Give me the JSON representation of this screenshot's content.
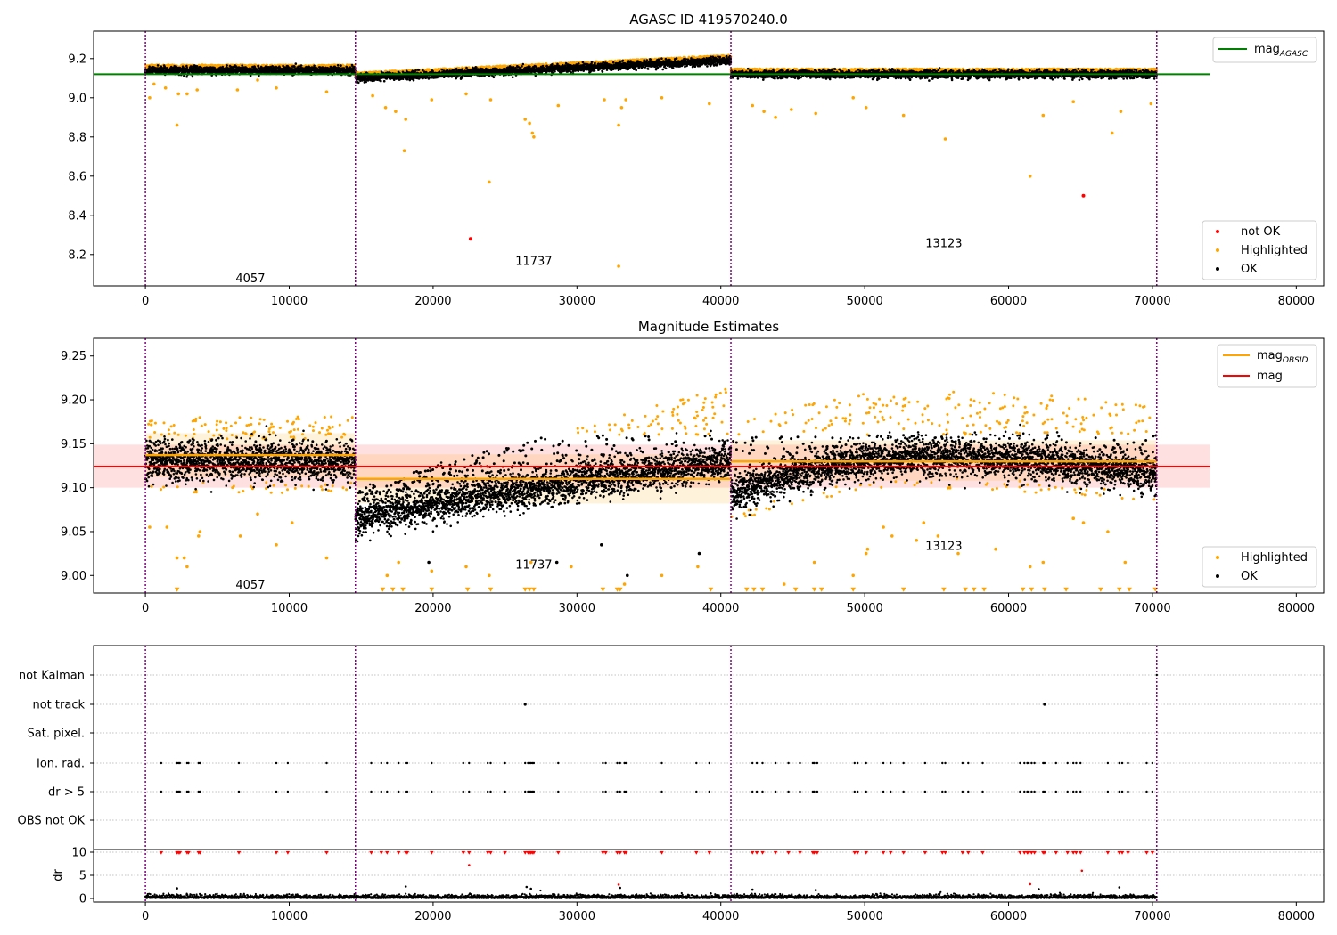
{
  "chart_data": [
    {
      "id": "agasc",
      "type": "scatter",
      "title": "AGASC ID 419570240.0",
      "xlim": [
        -3600,
        81900
      ],
      "ylim": [
        8.04,
        9.34
      ],
      "x_ticks": [
        0,
        10000,
        20000,
        30000,
        40000,
        50000,
        60000,
        70000,
        80000
      ],
      "y_ticks": [
        8.2,
        8.4,
        8.6,
        8.8,
        9.0,
        9.2
      ],
      "tick_decimals": 1,
      "obsid_boundaries": [
        0,
        14600,
        40700,
        70300
      ],
      "obsid_labels": [
        {
          "text": "4057",
          "x": 7300,
          "y": 8.08
        },
        {
          "text": "11737",
          "x": 27000,
          "y": 8.17
        },
        {
          "text": "13123",
          "x": 55500,
          "y": 8.26
        }
      ],
      "reference_line": {
        "label": "mag",
        "label_sub": "AGASC",
        "value": 9.12,
        "x": [
          -3600,
          74000
        ],
        "color": "#008000"
      },
      "segments": [
        {
          "x": [
            0,
            14600
          ],
          "mean": 9.14,
          "spread": 0.012,
          "trend": 0.0
        },
        {
          "x": [
            14600,
            40700
          ],
          "mean": 9.1,
          "spread": 0.012,
          "trend": 0.09
        },
        {
          "x": [
            40700,
            70300
          ],
          "mean": 9.12,
          "spread": 0.012,
          "trend": 0.0
        }
      ],
      "highlighted_outliers": [
        [
          300,
          9.0
        ],
        [
          600,
          9.07
        ],
        [
          1400,
          9.05
        ],
        [
          2200,
          8.86
        ],
        [
          2300,
          9.02
        ],
        [
          2900,
          9.02
        ],
        [
          3600,
          9.04
        ],
        [
          6400,
          9.04
        ],
        [
          7800,
          9.09
        ],
        [
          9100,
          9.05
        ],
        [
          12600,
          9.03
        ],
        [
          15800,
          9.01
        ],
        [
          16700,
          8.95
        ],
        [
          17400,
          8.93
        ],
        [
          18100,
          8.89
        ],
        [
          18000,
          8.73
        ],
        [
          19900,
          8.99
        ],
        [
          22300,
          9.02
        ],
        [
          23900,
          8.57
        ],
        [
          24000,
          8.99
        ],
        [
          26400,
          8.89
        ],
        [
          26700,
          8.87
        ],
        [
          26900,
          8.82
        ],
        [
          27000,
          8.8
        ],
        [
          28700,
          8.96
        ],
        [
          31900,
          8.99
        ],
        [
          32900,
          8.86
        ],
        [
          33100,
          8.95
        ],
        [
          33400,
          8.99
        ],
        [
          35900,
          9.0
        ],
        [
          39200,
          8.97
        ],
        [
          42200,
          8.96
        ],
        [
          43000,
          8.93
        ],
        [
          43800,
          8.9
        ],
        [
          44900,
          8.94
        ],
        [
          46600,
          8.92
        ],
        [
          49200,
          9.0
        ],
        [
          50100,
          8.95
        ],
        [
          52700,
          8.91
        ],
        [
          55600,
          8.79
        ],
        [
          61500,
          8.6
        ],
        [
          62400,
          8.91
        ],
        [
          64500,
          8.98
        ],
        [
          67200,
          8.82
        ],
        [
          67800,
          8.93
        ],
        [
          69900,
          8.97
        ]
      ],
      "highlighted_upper_band": {
        "min": 0.012,
        "max": 0.06,
        "density": 0.6
      },
      "not_ok_points": [
        [
          22600,
          8.28
        ],
        [
          65200,
          8.5
        ]
      ],
      "special_points": [
        [
          32900,
          8.14
        ]
      ],
      "legends": [
        {
          "position": "upper-right",
          "entries": [
            {
              "label": "mag",
              "sub": "AGASC",
              "marker": "line",
              "color": "#008000"
            }
          ]
        },
        {
          "position": "lower-right",
          "entries": [
            {
              "label": "not OK",
              "marker": "dot",
              "color": "#ff0000"
            },
            {
              "label": "Highlighted",
              "marker": "dot",
              "color": "#ffa500"
            },
            {
              "label": "OK",
              "marker": "dot",
              "color": "#000000"
            }
          ]
        }
      ]
    },
    {
      "id": "mag_estimates",
      "type": "scatter",
      "title": "Magnitude Estimates",
      "xlim": [
        -3600,
        81900
      ],
      "ylim": [
        8.98,
        9.27
      ],
      "x_ticks": [
        0,
        10000,
        20000,
        30000,
        40000,
        50000,
        60000,
        70000,
        80000
      ],
      "y_ticks": [
        9.0,
        9.05,
        9.1,
        9.15,
        9.2,
        9.25
      ],
      "tick_decimals": 2,
      "obsid_boundaries": [
        0,
        14600,
        40700,
        70300
      ],
      "obsid_labels": [
        {
          "text": "4057",
          "x": 7300,
          "y": 8.99
        },
        {
          "text": "11737",
          "x": 27000,
          "y": 9.013
        },
        {
          "text": "13123",
          "x": 55500,
          "y": 9.034
        }
      ],
      "reference_line": {
        "label": "mag",
        "value": 9.124,
        "band": [
          9.1,
          9.149
        ],
        "x": [
          -3600,
          74000
        ],
        "color": "#ff0000"
      },
      "obsid_mags": [
        {
          "x": [
            0,
            14600
          ],
          "value": 9.137,
          "band": [
            9.112,
            9.162
          ]
        },
        {
          "x": [
            14600,
            40700
          ],
          "value": 9.11,
          "band": [
            9.082,
            9.138
          ]
        },
        {
          "x": [
            40700,
            70300
          ],
          "value": 9.13,
          "band": [
            9.108,
            9.154
          ]
        }
      ],
      "segments": [
        {
          "x": [
            0,
            14600
          ],
          "mean": 9.13,
          "spread": 0.015,
          "curve": "flat",
          "upper": 0.03
        },
        {
          "x": [
            14600,
            40700
          ],
          "mean_start": 9.065,
          "mean_end": 9.13,
          "spread": 0.015,
          "curve": "rise",
          "upper_start": 0.01,
          "upper_end": 0.065
        },
        {
          "x": [
            40700,
            70300
          ],
          "mean_start": 9.095,
          "mean_peak": 9.135,
          "mean_end": 9.115,
          "spread": 0.015,
          "curve": "arch",
          "upper": 0.055
        }
      ],
      "highlighted_outliers": [
        [
          300,
          9.055
        ],
        [
          1500,
          9.055
        ],
        [
          2200,
          9.02
        ],
        [
          2700,
          9.02
        ],
        [
          2900,
          9.01
        ],
        [
          3800,
          9.05
        ],
        [
          3700,
          9.045
        ],
        [
          6600,
          9.045
        ],
        [
          7800,
          9.07
        ],
        [
          9100,
          9.035
        ],
        [
          10200,
          9.06
        ],
        [
          12600,
          9.02
        ],
        [
          16800,
          9.0
        ],
        [
          17600,
          9.015
        ],
        [
          19900,
          9.005
        ],
        [
          22300,
          9.01
        ],
        [
          23900,
          9.0
        ],
        [
          26800,
          9.015
        ],
        [
          29600,
          9.01
        ],
        [
          33300,
          8.99
        ],
        [
          35900,
          9.0
        ],
        [
          38400,
          9.01
        ],
        [
          44400,
          8.99
        ],
        [
          46500,
          9.015
        ],
        [
          49200,
          9.0
        ],
        [
          50100,
          9.025
        ],
        [
          50200,
          9.03
        ],
        [
          51300,
          9.055
        ],
        [
          51900,
          9.045
        ],
        [
          53600,
          9.04
        ],
        [
          54100,
          9.06
        ],
        [
          55100,
          9.045
        ],
        [
          56500,
          9.025
        ],
        [
          59100,
          9.03
        ],
        [
          61500,
          9.01
        ],
        [
          62400,
          9.015
        ],
        [
          64500,
          9.065
        ],
        [
          65200,
          9.06
        ],
        [
          66900,
          9.05
        ],
        [
          68100,
          9.015
        ]
      ],
      "ok_outliers": [
        [
          19700,
          9.015
        ],
        [
          31700,
          9.035
        ],
        [
          33500,
          9.0
        ],
        [
          38500,
          9.025
        ],
        [
          28600,
          9.015
        ]
      ],
      "clipped_markers_x": [
        2200,
        16500,
        17200,
        17900,
        19900,
        22400,
        24000,
        26400,
        26700,
        27000,
        31800,
        32800,
        33000,
        39300,
        41800,
        42300,
        42900,
        45200,
        46500,
        47000,
        49200,
        52700,
        55500,
        57000,
        57600,
        58300,
        61000,
        61600,
        62500,
        64000,
        66400,
        67700,
        68400,
        70200
      ],
      "legends": [
        {
          "position": "upper-right",
          "entries": [
            {
              "label": "mag",
              "sub": "OBSID",
              "marker": "line",
              "color": "#ffa500"
            },
            {
              "label": "mag",
              "marker": "line",
              "color": "#ff0000"
            }
          ]
        },
        {
          "position": "lower-right",
          "entries": [
            {
              "label": "Highlighted",
              "marker": "dot",
              "color": "#ffa500"
            },
            {
              "label": "OK",
              "marker": "dot",
              "color": "#000000"
            }
          ]
        }
      ]
    },
    {
      "id": "flags",
      "type": "scatter",
      "xlim": [
        -3600,
        81900
      ],
      "rows": [
        "not Kalman",
        "not track",
        "Sat. pixel.",
        "Ion. rad.",
        "dr > 5",
        "OBS not OK"
      ],
      "obsid_boundaries": [
        0,
        14600,
        40700,
        70300
      ],
      "not_track_x": [
        26400,
        62500
      ],
      "ion_rad_x": [
        1100,
        2200,
        2300,
        2400,
        2900,
        3000,
        3700,
        3800,
        6500,
        9100,
        9900,
        12600,
        15700,
        16400,
        16800,
        17600,
        18100,
        18200,
        19900,
        22100,
        22500,
        23800,
        24000,
        25000,
        26400,
        26600,
        26700,
        26800,
        26900,
        27000,
        28700,
        31800,
        32000,
        32800,
        33000,
        33300,
        33400,
        35900,
        38300,
        39200,
        42200,
        42500,
        42900,
        43800,
        44700,
        45500,
        46400,
        46500,
        46700,
        49300,
        49500,
        50100,
        51300,
        51800,
        52700,
        54200,
        55400,
        55600,
        56800,
        57200,
        58200,
        60800,
        61100,
        61300,
        61400,
        61600,
        61800,
        62400,
        62500,
        63300,
        64100,
        64500,
        64700,
        65000,
        66900,
        67700,
        67900,
        68300,
        69600,
        70000
      ],
      "dr5_x": [
        1100,
        2200,
        2300,
        2400,
        2900,
        3000,
        3700,
        3800,
        6500,
        9100,
        9900,
        12600,
        15700,
        16400,
        16800,
        17600,
        18100,
        18200,
        19900,
        22100,
        22500,
        23800,
        24000,
        25000,
        26400,
        26600,
        26700,
        26800,
        26900,
        27000,
        28700,
        31800,
        32000,
        32800,
        33000,
        33300,
        33400,
        35900,
        38300,
        39200,
        42200,
        42500,
        42900,
        43800,
        44700,
        45500,
        46400,
        46500,
        46700,
        49300,
        49500,
        50100,
        51300,
        51800,
        52700,
        54200,
        55400,
        55600,
        56800,
        57200,
        58200,
        60800,
        61100,
        61300,
        61400,
        61600,
        61800,
        62400,
        62500,
        63300,
        64100,
        64500,
        64700,
        65000,
        66900,
        67700,
        67900,
        68300,
        69600,
        70000
      ]
    },
    {
      "id": "dr",
      "type": "scatter",
      "ylabel": "dr",
      "xlim": [
        -3600,
        81900
      ],
      "ylim": [
        0,
        10.5
      ],
      "x_ticks": [
        0,
        10000,
        20000,
        30000,
        40000,
        50000,
        60000,
        70000,
        80000
      ],
      "y_ticks": [
        0,
        5,
        10
      ],
      "obsid_boundaries": [
        0,
        14600,
        40700,
        70300
      ],
      "clipped_markers_x": [
        1100,
        2200,
        2300,
        2400,
        2900,
        3000,
        3700,
        3800,
        6500,
        9100,
        9900,
        12600,
        15700,
        16400,
        16800,
        17600,
        18100,
        18200,
        19900,
        22100,
        22500,
        23800,
        24000,
        25000,
        26400,
        26600,
        26700,
        26800,
        26900,
        27000,
        28700,
        31800,
        32000,
        32800,
        33000,
        33300,
        33400,
        35900,
        38300,
        39200,
        42200,
        42500,
        42900,
        43800,
        44700,
        45500,
        46400,
        46500,
        46700,
        49300,
        49500,
        50100,
        51300,
        51800,
        52700,
        54200,
        55400,
        55600,
        56800,
        57200,
        58200,
        60800,
        61100,
        61300,
        61400,
        61600,
        61800,
        62400,
        62500,
        63300,
        64100,
        64500,
        64700,
        65000,
        66900,
        67700,
        67900,
        68300,
        69600,
        70000
      ],
      "red_points": [
        [
          22500,
          7.2
        ],
        [
          65100,
          6.0
        ],
        [
          61500,
          3.1
        ],
        [
          32900,
          3.0
        ]
      ],
      "black_outliers": [
        [
          2200,
          2.2
        ],
        [
          18100,
          2.6
        ],
        [
          26500,
          2.5
        ],
        [
          26800,
          2.1
        ],
        [
          33000,
          2.3
        ],
        [
          42200,
          1.9
        ],
        [
          46600,
          1.8
        ],
        [
          62100,
          2.0
        ],
        [
          67700,
          2.4
        ],
        [
          39300,
          1.1
        ]
      ]
    }
  ],
  "colors": {
    "ok": "#000000",
    "highlighted": "#ffa500",
    "not_ok": "#ff0000",
    "agasc_line": "#008000",
    "obsid_line": "#ffa500",
    "mag_line": "#ff0000",
    "boundary": "#800080",
    "grid": "#b0b0b0"
  }
}
